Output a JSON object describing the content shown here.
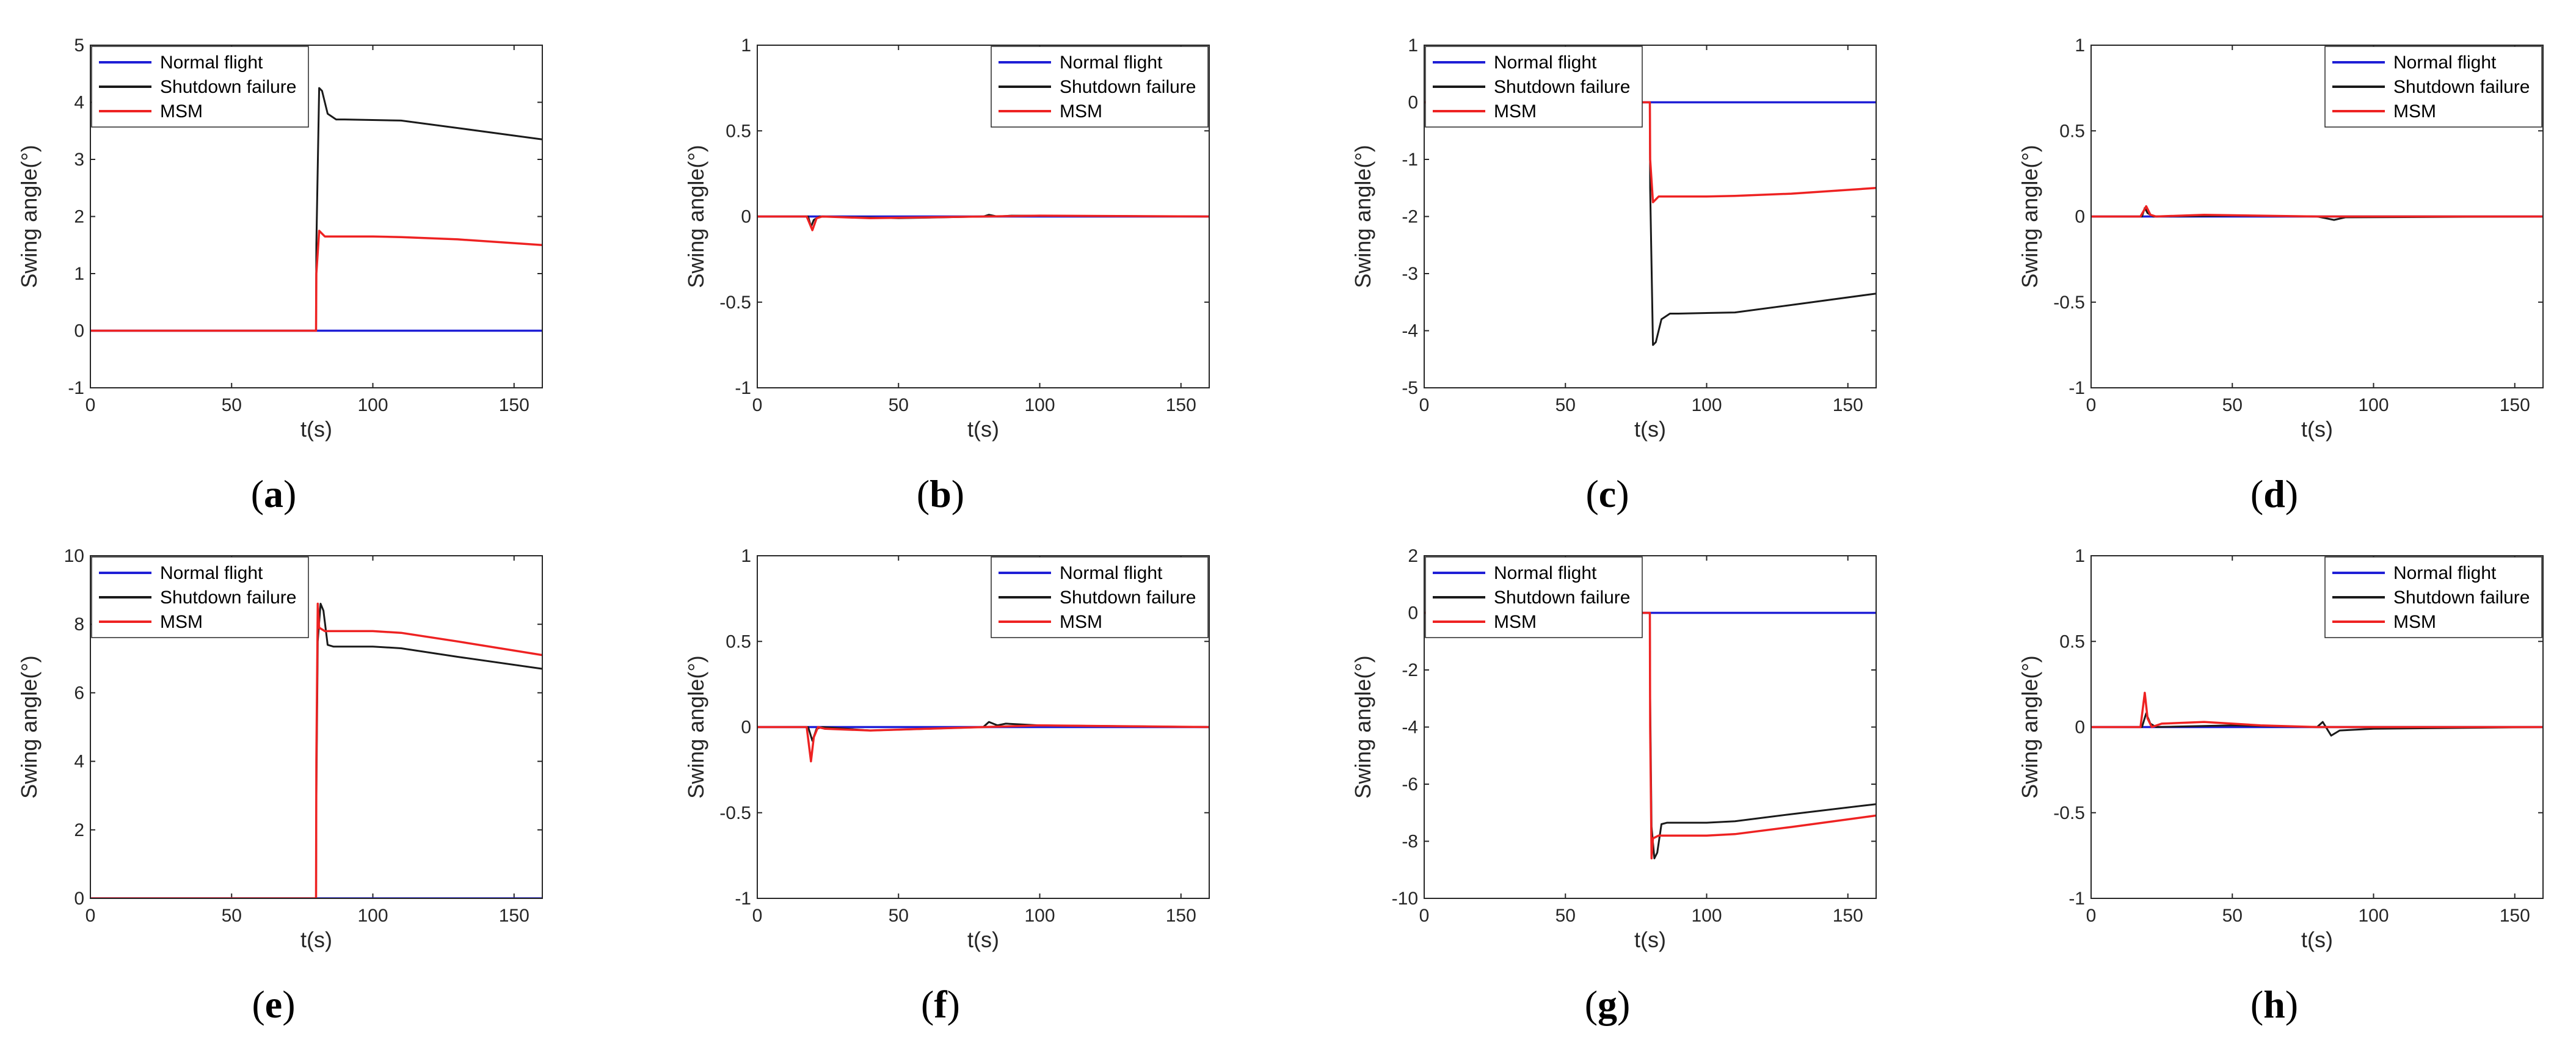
{
  "figure": {
    "colors": {
      "normal": "#1f1fd6",
      "shutdown": "#1a1a1a",
      "msm": "#ee2222",
      "axis": "#262626"
    }
  },
  "chart_data": [
    {
      "id": "a",
      "panel_label": "a",
      "type": "line",
      "xlabel": "t(s)",
      "ylabel": "Swing angle(°)",
      "xlim": [
        0,
        160
      ],
      "ylim": [
        -1,
        5
      ],
      "xticks": [
        0,
        50,
        100,
        150
      ],
      "yticks": [
        -1,
        0,
        1,
        2,
        3,
        4,
        5
      ],
      "legend_position": "top-left",
      "series": [
        {
          "name": "Normal flight",
          "color": "#1f1fd6",
          "x": [
            0,
            160
          ],
          "y": [
            0,
            0
          ]
        },
        {
          "name": "Shutdown failure",
          "color": "#1a1a1a",
          "x": [
            0,
            79.9,
            80,
            81,
            82,
            84,
            87,
            90,
            110,
            130,
            160
          ],
          "y": [
            0,
            0,
            1.5,
            4.25,
            4.2,
            3.8,
            3.7,
            3.7,
            3.68,
            3.55,
            3.35
          ]
        },
        {
          "name": "MSM",
          "color": "#ee2222",
          "x": [
            0,
            79.9,
            80,
            81,
            83,
            86,
            100,
            110,
            130,
            160
          ],
          "y": [
            0,
            0,
            1.0,
            1.75,
            1.65,
            1.65,
            1.65,
            1.64,
            1.6,
            1.5
          ]
        }
      ]
    },
    {
      "id": "b",
      "panel_label": "b",
      "type": "line",
      "xlabel": "t(s)",
      "ylabel": "Swing angle(°)",
      "xlim": [
        0,
        160
      ],
      "ylim": [
        -1,
        1
      ],
      "xticks": [
        0,
        50,
        100,
        150
      ],
      "yticks": [
        -1,
        -0.5,
        0,
        0.5,
        1
      ],
      "legend_position": "top-right",
      "series": [
        {
          "name": "Normal flight",
          "color": "#1f1fd6",
          "x": [
            0,
            160
          ],
          "y": [
            0,
            0
          ]
        },
        {
          "name": "Shutdown failure",
          "color": "#1a1a1a",
          "x": [
            0,
            18,
            19,
            20,
            22,
            50,
            80,
            82,
            85,
            90,
            160
          ],
          "y": [
            0,
            0,
            -0.06,
            -0.02,
            0,
            -0.01,
            0,
            0.01,
            0,
            0.005,
            0
          ]
        },
        {
          "name": "MSM",
          "color": "#ee2222",
          "x": [
            0,
            17.5,
            18.5,
            19.5,
            21,
            23,
            40,
            80,
            100,
            160
          ],
          "y": [
            0,
            0,
            -0.04,
            -0.08,
            -0.01,
            0,
            -0.01,
            0,
            0.005,
            0
          ]
        }
      ]
    },
    {
      "id": "c",
      "panel_label": "c",
      "type": "line",
      "xlabel": "t(s)",
      "ylabel": "Swing angle(°)",
      "xlim": [
        0,
        160
      ],
      "ylim": [
        -5,
        1
      ],
      "xticks": [
        0,
        50,
        100,
        150
      ],
      "yticks": [
        -5,
        -4,
        -3,
        -2,
        -1,
        0,
        1
      ],
      "legend_position": "top-left",
      "series": [
        {
          "name": "Normal flight",
          "color": "#1f1fd6",
          "x": [
            0,
            160
          ],
          "y": [
            0,
            0
          ]
        },
        {
          "name": "Shutdown failure",
          "color": "#1a1a1a",
          "x": [
            0,
            79.9,
            80,
            81,
            82,
            84,
            87,
            90,
            110,
            130,
            160
          ],
          "y": [
            0,
            0,
            -1.5,
            -4.25,
            -4.2,
            -3.8,
            -3.7,
            -3.7,
            -3.68,
            -3.55,
            -3.35
          ]
        },
        {
          "name": "MSM",
          "color": "#ee2222",
          "x": [
            0,
            79.9,
            80,
            81,
            83,
            86,
            100,
            110,
            130,
            160
          ],
          "y": [
            0,
            0,
            -1.0,
            -1.75,
            -1.65,
            -1.65,
            -1.65,
            -1.64,
            -1.6,
            -1.5
          ]
        }
      ]
    },
    {
      "id": "d",
      "panel_label": "d",
      "type": "line",
      "xlabel": "t(s)",
      "ylabel": "Swing angle(°)",
      "xlim": [
        0,
        160
      ],
      "ylim": [
        -1,
        1
      ],
      "xticks": [
        0,
        50,
        100,
        150
      ],
      "yticks": [
        -1,
        -0.5,
        0,
        0.5,
        1
      ],
      "legend_position": "top-right",
      "series": [
        {
          "name": "Normal flight",
          "color": "#1f1fd6",
          "x": [
            0,
            160
          ],
          "y": [
            0,
            0
          ]
        },
        {
          "name": "Shutdown failure",
          "color": "#1a1a1a",
          "x": [
            0,
            18,
            19,
            20,
            22,
            50,
            80,
            83,
            86,
            90,
            160
          ],
          "y": [
            0,
            0,
            0.05,
            0.02,
            0,
            0.005,
            0,
            -0.01,
            -0.02,
            -0.005,
            0
          ]
        },
        {
          "name": "MSM",
          "color": "#ee2222",
          "x": [
            0,
            17.5,
            18.5,
            19.5,
            21,
            23,
            40,
            80,
            160
          ],
          "y": [
            0,
            0,
            0.03,
            0.06,
            0.01,
            0,
            0.01,
            0,
            0
          ]
        }
      ]
    },
    {
      "id": "e",
      "panel_label": "e",
      "type": "line",
      "xlabel": "t(s)",
      "ylabel": "Swing angle(°)",
      "xlim": [
        0,
        160
      ],
      "ylim": [
        0,
        10
      ],
      "xticks": [
        0,
        50,
        100,
        150
      ],
      "yticks": [
        0,
        2,
        4,
        6,
        8,
        10
      ],
      "legend_position": "top-left",
      "series": [
        {
          "name": "Normal flight",
          "color": "#1f1fd6",
          "x": [
            0,
            160
          ],
          "y": [
            0,
            0
          ]
        },
        {
          "name": "Shutdown failure",
          "color": "#1a1a1a",
          "x": [
            0,
            79.9,
            80,
            80.5,
            81.5,
            82.5,
            84,
            86,
            90,
            100,
            110,
            130,
            160
          ],
          "y": [
            0,
            0,
            3,
            7.5,
            8.6,
            8.4,
            7.4,
            7.35,
            7.35,
            7.35,
            7.3,
            7.05,
            6.7
          ]
        },
        {
          "name": "MSM",
          "color": "#ee2222",
          "x": [
            0,
            79.9,
            80,
            80.5,
            81,
            83,
            86,
            100,
            110,
            130,
            160
          ],
          "y": [
            0,
            0,
            4,
            8.6,
            7.9,
            7.8,
            7.8,
            7.8,
            7.75,
            7.5,
            7.1
          ]
        }
      ]
    },
    {
      "id": "f",
      "panel_label": "f",
      "type": "line",
      "xlabel": "t(s)",
      "ylabel": "Swing angle(°)",
      "xlim": [
        0,
        160
      ],
      "ylim": [
        -1,
        1
      ],
      "xticks": [
        0,
        50,
        100,
        150
      ],
      "yticks": [
        -1,
        -0.5,
        0,
        0.5,
        1
      ],
      "legend_position": "top-right",
      "series": [
        {
          "name": "Normal flight",
          "color": "#1f1fd6",
          "x": [
            0,
            160
          ],
          "y": [
            0,
            0
          ]
        },
        {
          "name": "Shutdown failure",
          "color": "#1a1a1a",
          "x": [
            0,
            18,
            19.5,
            21,
            23,
            40,
            80,
            82,
            85,
            88,
            100,
            160
          ],
          "y": [
            0,
            0,
            -0.08,
            -0.01,
            0,
            -0.02,
            0,
            0.03,
            0.01,
            0.02,
            0.01,
            0
          ]
        },
        {
          "name": "MSM",
          "color": "#ee2222",
          "x": [
            0,
            17.5,
            19,
            20,
            21.5,
            24,
            40,
            60,
            80,
            100,
            160
          ],
          "y": [
            0,
            0,
            -0.2,
            -0.06,
            0,
            -0.01,
            -0.02,
            -0.01,
            0,
            0.01,
            0
          ]
        }
      ]
    },
    {
      "id": "g",
      "panel_label": "g",
      "type": "line",
      "xlabel": "t(s)",
      "ylabel": "Swing angle(°)",
      "xlim": [
        0,
        160
      ],
      "ylim": [
        -10,
        2
      ],
      "xticks": [
        0,
        50,
        100,
        150
      ],
      "yticks": [
        -10,
        -8,
        -6,
        -4,
        -2,
        0,
        2
      ],
      "legend_position": "top-left",
      "series": [
        {
          "name": "Normal flight",
          "color": "#1f1fd6",
          "x": [
            0,
            160
          ],
          "y": [
            0,
            0
          ]
        },
        {
          "name": "Shutdown failure",
          "color": "#1a1a1a",
          "x": [
            0,
            79.9,
            80,
            80.5,
            81.5,
            82.5,
            84,
            86,
            90,
            100,
            110,
            130,
            160
          ],
          "y": [
            0,
            0,
            -3,
            -7.5,
            -8.6,
            -8.4,
            -7.4,
            -7.35,
            -7.35,
            -7.35,
            -7.3,
            -7.05,
            -6.7
          ]
        },
        {
          "name": "MSM",
          "color": "#ee2222",
          "x": [
            0,
            79.9,
            80,
            80.5,
            81,
            83,
            86,
            100,
            110,
            130,
            160
          ],
          "y": [
            0,
            0,
            -4,
            -8.6,
            -7.9,
            -7.8,
            -7.8,
            -7.8,
            -7.75,
            -7.5,
            -7.1
          ]
        }
      ]
    },
    {
      "id": "h",
      "panel_label": "h",
      "type": "line",
      "xlabel": "t(s)",
      "ylabel": "Swing angle(°)",
      "xlim": [
        0,
        160
      ],
      "ylim": [
        -1,
        1
      ],
      "xticks": [
        0,
        50,
        100,
        150
      ],
      "yticks": [
        -1,
        -0.5,
        0,
        0.5,
        1
      ],
      "legend_position": "top-right",
      "series": [
        {
          "name": "Normal flight",
          "color": "#1f1fd6",
          "x": [
            0,
            160
          ],
          "y": [
            0,
            0
          ]
        },
        {
          "name": "Shutdown failure",
          "color": "#1a1a1a",
          "x": [
            0,
            18,
            19.5,
            21,
            23,
            50,
            80,
            82,
            85,
            88,
            100,
            160
          ],
          "y": [
            0,
            0,
            0.08,
            0.02,
            0,
            0.01,
            0,
            0.03,
            -0.05,
            -0.02,
            -0.01,
            0
          ]
        },
        {
          "name": "MSM",
          "color": "#ee2222",
          "x": [
            0,
            17.5,
            19,
            20,
            21.5,
            25,
            40,
            60,
            80,
            100,
            160
          ],
          "y": [
            0,
            0,
            0.2,
            0.05,
            0,
            0.02,
            0.03,
            0.01,
            0,
            0,
            0
          ]
        }
      ]
    }
  ]
}
